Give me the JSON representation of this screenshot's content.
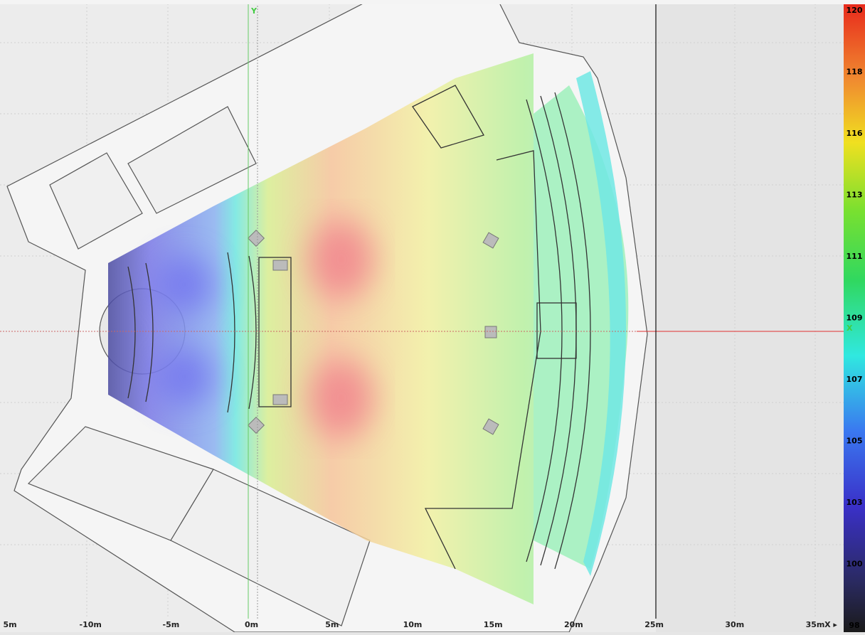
{
  "x_axis": {
    "labels": [
      "5m",
      "-10m",
      "-5m",
      "0m",
      "5m",
      "10m",
      "15m",
      "20m",
      "25m",
      "30m",
      "35m"
    ],
    "end_label": "X ▸"
  },
  "axis_names": {
    "y": "Y",
    "x": "X"
  },
  "color_scale": {
    "labels": [
      120,
      118,
      116,
      113,
      111,
      109,
      107,
      105,
      103,
      100,
      98
    ]
  }
}
